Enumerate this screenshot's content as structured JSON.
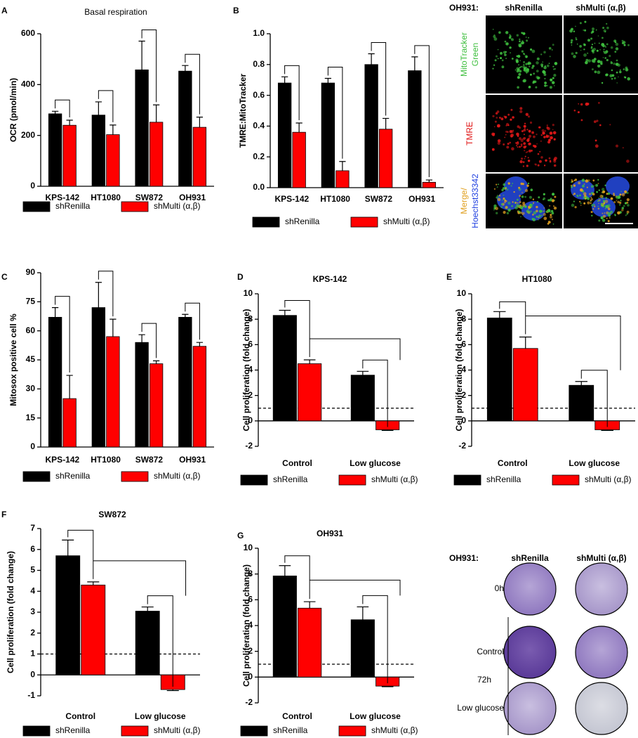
{
  "chart_data": [
    {
      "type": "bar",
      "panel": "A",
      "title": "Basal respiration",
      "ylabel": "OCR (pmol/min)",
      "categories": [
        "KPS-142",
        "HT1080",
        "SW872",
        "OH931"
      ],
      "series": [
        {
          "name": "shRenilla",
          "color": "#000000",
          "values": [
            285,
            280,
            458,
            453
          ],
          "errors": [
            10,
            52,
            113,
            22
          ]
        },
        {
          "name": "shMulti (α,β)",
          "color": "#ff0000",
          "values": [
            240,
            203,
            252,
            232
          ],
          "errors": [
            20,
            38,
            68,
            40
          ]
        }
      ],
      "ylim": [
        0,
        600
      ],
      "yticks": [
        0,
        200,
        400,
        600
      ],
      "annotations": [
        "**",
        "*",
        "**",
        "***"
      ]
    },
    {
      "type": "bar",
      "panel": "B",
      "ylabel": "TMRE:MitoTracker",
      "categories": [
        "KPS-142",
        "HT1080",
        "SW872",
        "OH931"
      ],
      "series": [
        {
          "name": "shRenilla",
          "color": "#000000",
          "values": [
            0.68,
            0.68,
            0.8,
            0.76
          ],
          "errors": [
            0.04,
            0.03,
            0.07,
            0.09
          ]
        },
        {
          "name": "shMulti (α,β)",
          "color": "#ff0000",
          "values": [
            0.36,
            0.11,
            0.38,
            0.035
          ],
          "errors": [
            0.06,
            0.06,
            0.07,
            0.015
          ]
        }
      ],
      "ylim": [
        0,
        1
      ],
      "yticks": [
        {
          "value": 0,
          "label": "0.0"
        },
        0.2,
        0.4,
        0.6,
        0.8,
        {
          "value": 1,
          "label": "1.0"
        }
      ],
      "annotations": [
        "***",
        "***",
        "***",
        "***"
      ]
    },
    {
      "type": "bar",
      "panel": "C",
      "ylabel": "Mitosox positive cell %",
      "categories": [
        "KPS-142",
        "HT1080",
        "SW872",
        "OH931"
      ],
      "series": [
        {
          "name": "shRenilla",
          "color": "#000000",
          "values": [
            67,
            72,
            54,
            67
          ],
          "errors": [
            5,
            13,
            4,
            1.5
          ]
        },
        {
          "name": "shMulti (α,β)",
          "color": "#ff0000",
          "values": [
            25,
            57,
            43,
            52
          ],
          "errors": [
            12,
            9,
            1.5,
            2
          ]
        }
      ],
      "ylim": [
        0,
        90
      ],
      "yticks": [
        0,
        15,
        30,
        45,
        60,
        75,
        90
      ],
      "annotations": [
        "***",
        "**",
        "**",
        "***"
      ]
    },
    {
      "type": "bar",
      "panel": "D",
      "title": "KPS-142",
      "ylabel": "Cell proliferation (fold change)",
      "categories": [
        "Control",
        "Low glucose"
      ],
      "series": [
        {
          "name": "shRenilla",
          "color": "#000000",
          "values": [
            8.3,
            3.6
          ],
          "errors": [
            0.4,
            0.3
          ]
        },
        {
          "name": "shMulti (α,β)",
          "color": "#ff0000",
          "values": [
            4.5,
            -0.7
          ],
          "errors": [
            0.3,
            0.05
          ]
        }
      ],
      "ylim": [
        -2,
        10
      ],
      "yticks": [
        -2,
        0,
        2,
        4,
        6,
        8,
        10
      ],
      "reference_line": 1,
      "annotations": [
        "***",
        "***",
        "***"
      ]
    },
    {
      "type": "bar",
      "panel": "E",
      "title": "HT1080",
      "ylabel": "Cell proliferation (fold change)",
      "categories": [
        "Control",
        "Low glucose"
      ],
      "series": [
        {
          "name": "shRenilla",
          "color": "#000000",
          "values": [
            8.1,
            2.8
          ],
          "errors": [
            0.5,
            0.3
          ]
        },
        {
          "name": "shMulti (α,β)",
          "color": "#ff0000",
          "values": [
            5.7,
            -0.7
          ],
          "errors": [
            0.9,
            0.05
          ]
        }
      ],
      "ylim": [
        -2,
        10
      ],
      "yticks": [
        -2,
        0,
        2,
        4,
        6,
        8,
        10
      ],
      "reference_line": 1,
      "annotations": [
        "***",
        "***",
        "***"
      ]
    },
    {
      "type": "bar",
      "panel": "F",
      "title": "SW872",
      "ylabel": "Cell proliferation (fold change)",
      "categories": [
        "Control",
        "Low glucose"
      ],
      "series": [
        {
          "name": "shRenilla",
          "color": "#000000",
          "values": [
            5.7,
            3.05
          ],
          "errors": [
            0.75,
            0.2
          ]
        },
        {
          "name": "shMulti (α,β)",
          "color": "#ff0000",
          "values": [
            4.3,
            -0.7
          ],
          "errors": [
            0.15,
            0.05
          ]
        }
      ],
      "ylim": [
        -1,
        7
      ],
      "yticks": [
        -1,
        0,
        1,
        2,
        3,
        4,
        5,
        6,
        7
      ],
      "reference_line": 1,
      "annotations": [
        "**",
        "***",
        "***"
      ]
    },
    {
      "type": "bar",
      "panel": "G",
      "title": "OH931",
      "ylabel": "Cell proliferation (fold change)",
      "categories": [
        "Control",
        "Low glucose"
      ],
      "series": [
        {
          "name": "shRenilla",
          "color": "#000000",
          "values": [
            7.85,
            4.45
          ],
          "errors": [
            0.8,
            1.0
          ]
        },
        {
          "name": "shMulti (α,β)",
          "color": "#ff0000",
          "values": [
            5.35,
            -0.7
          ],
          "errors": [
            0.5,
            0.05
          ]
        }
      ],
      "ylim": [
        -2,
        10
      ],
      "yticks": [
        -2,
        0,
        2,
        4,
        6,
        8,
        10
      ],
      "reference_line": 1,
      "annotations": [
        "**",
        "***",
        "***"
      ]
    }
  ],
  "microscopy": {
    "cell_line": "OH931:",
    "columns": [
      "shRenilla",
      "shMulti (α,β)"
    ],
    "rows": [
      [
        "MitoTracker",
        "Green"
      ],
      [
        "TMRE"
      ],
      [
        "Merge/",
        "Hoechst33342"
      ]
    ]
  },
  "plates": {
    "cell_line": "OH931:",
    "columns": [
      "shRenilla",
      "shMulti (α,β)"
    ],
    "rows": [
      "0h",
      "Control",
      "Low glucose"
    ],
    "group": "72h"
  }
}
